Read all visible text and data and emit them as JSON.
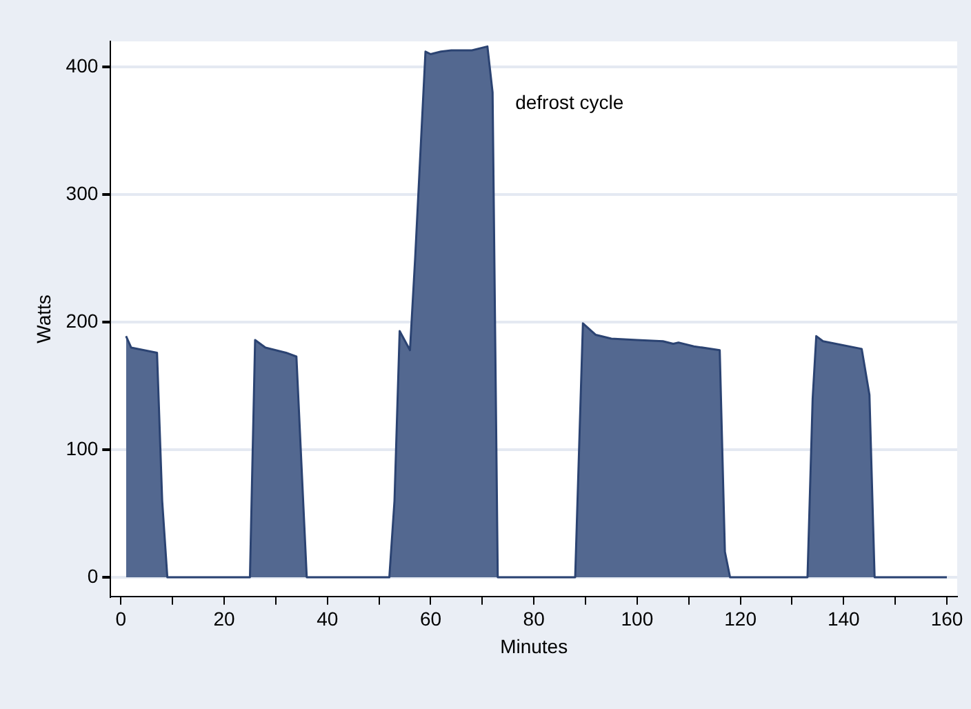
{
  "chart_data": {
    "type": "area",
    "xlabel": "Minutes",
    "ylabel": "Watts",
    "x": [
      1,
      2,
      7,
      8,
      9,
      25,
      26,
      28,
      32,
      34,
      36,
      52,
      53,
      54,
      56,
      57,
      59,
      60,
      62,
      64,
      68,
      71,
      72,
      73,
      88,
      89.5,
      92,
      95,
      100,
      105,
      107,
      108,
      111,
      116,
      117,
      118,
      133,
      134,
      134.7,
      136,
      143.5,
      145,
      146,
      160
    ],
    "series": [
      {
        "color": "#536890",
        "values": [
          189,
          180,
          176,
          60,
          0,
          0,
          186,
          180,
          176,
          173,
          0,
          0,
          60,
          193,
          178,
          250,
          412,
          410,
          412,
          413,
          413,
          416,
          380,
          0,
          0,
          199,
          190,
          187,
          186,
          185,
          183,
          184,
          181,
          178,
          20,
          0,
          0,
          140,
          189,
          185,
          179,
          143,
          0,
          0
        ]
      }
    ],
    "xlim": [
      -2,
      162
    ],
    "xticks": [
      0,
      {
        "value": 10,
        "label": null
      },
      20,
      {
        "value": 30,
        "label": null
      },
      40,
      {
        "value": 50,
        "label": null
      },
      60,
      {
        "value": 70,
        "label": null
      },
      80,
      {
        "value": 90,
        "label": null
      },
      100,
      {
        "value": 110,
        "label": null
      },
      120,
      {
        "value": 130,
        "label": null
      },
      140,
      {
        "value": 150,
        "label": null
      },
      160
    ],
    "ylim": [
      -15,
      420
    ],
    "yticks": [
      0,
      100,
      200,
      300,
      400
    ],
    "grid": "y",
    "annotations": [
      "defrost cycle"
    ]
  }
}
